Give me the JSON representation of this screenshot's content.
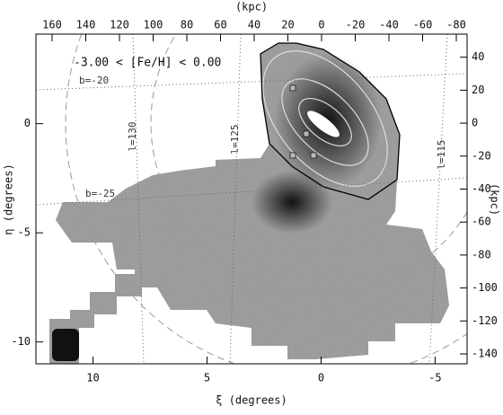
{
  "chart_data": {
    "type": "map",
    "xlabel": "ξ (degrees)",
    "ylabel": "η (degrees)",
    "x2label": "(kpc)",
    "y2label": "(kpc)",
    "xlim": [
      12.5,
      -6.4
    ],
    "xticks": [
      10,
      5,
      0,
      -5
    ],
    "ylim": [
      -11,
      4.1
    ],
    "yticks": [
      0,
      -5,
      -10
    ],
    "x2lim": [
      169.6,
      -86.4
    ],
    "x2ticks": [
      160,
      140,
      120,
      100,
      80,
      60,
      40,
      20,
      0,
      -20,
      -40,
      -60,
      -80
    ],
    "y2lim": [
      -146,
      54
    ],
    "y2ticks": [
      40,
      20,
      0,
      -20,
      -40,
      -60,
      -80,
      -100,
      -120,
      -140
    ],
    "annotations": {
      "metallicity": "-3.00 < [Fe/H] < 0.00",
      "b20": "b=-20",
      "b25": "b=-25",
      "l130": "l=130",
      "l125": "l=125",
      "l115": "l=115"
    }
  }
}
